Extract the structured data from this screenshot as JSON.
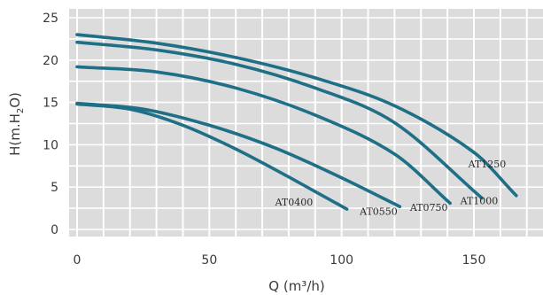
{
  "chart_data": {
    "type": "line",
    "title": "",
    "xlabel": "Q (m³/h)",
    "ylabel_parts": {
      "main": "H(m.H",
      "sub": "2",
      "end": "O)"
    },
    "xlim": [
      0,
      175
    ],
    "ylim": [
      0,
      25
    ],
    "x_ticks": [
      0,
      50,
      100,
      150
    ],
    "y_ticks": [
      0,
      5,
      10,
      15,
      20,
      25
    ],
    "grid": true,
    "background_color": "#dcdcdc",
    "curve_color": "#1f6f86",
    "series": [
      {
        "name": "AT0400",
        "x": [
          0,
          20,
          40,
          60,
          80,
          102
        ],
        "y": [
          14.8,
          14.2,
          12.3,
          9.5,
          6.2,
          2.4
        ],
        "label_x": 82,
        "label_y": 2.8
      },
      {
        "name": "AT0550",
        "x": [
          0,
          25,
          50,
          75,
          100,
          122
        ],
        "y": [
          14.9,
          14.2,
          12.3,
          9.6,
          6.1,
          2.7
        ],
        "label_x": 114,
        "label_y": 1.7
      },
      {
        "name": "AT0750",
        "x": [
          0,
          30,
          60,
          90,
          120,
          141
        ],
        "y": [
          19.2,
          18.6,
          16.7,
          13.5,
          8.9,
          3.1
        ],
        "label_x": 133,
        "label_y": 2.2
      },
      {
        "name": "AT1000",
        "x": [
          0,
          30,
          60,
          90,
          120,
          153
        ],
        "y": [
          22.1,
          21.2,
          19.5,
          16.7,
          12.6,
          3.7
        ],
        "label_x": 152,
        "label_y": 3.0
      },
      {
        "name": "AT1250",
        "x": [
          0,
          30,
          60,
          90,
          120,
          150,
          166
        ],
        "y": [
          23.0,
          22.0,
          20.3,
          17.9,
          14.6,
          9.1,
          4.0
        ],
        "label_x": 155,
        "label_y": 7.3
      }
    ]
  }
}
